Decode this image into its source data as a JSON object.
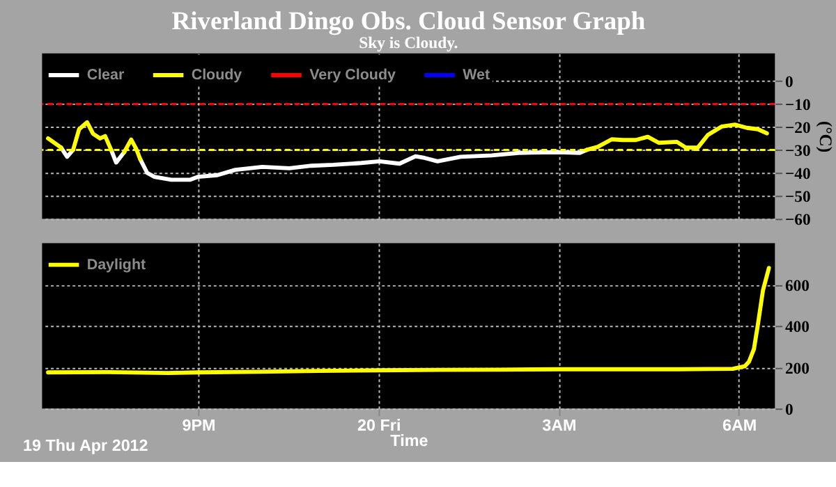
{
  "chart_data": [
    {
      "type": "line",
      "title": "Riverland Dingo Obs. Cloud Sensor Graph",
      "subtitle": "Sky is Cloudy.",
      "ylabel": "(°C)",
      "series": [
        {
          "name": "Clear",
          "color": "#ffffff",
          "x": [
            "2012-04-19T18:43",
            "2012-04-19T18:49",
            "2012-04-19T18:55",
            null,
            "2012-04-19T19:33",
            "2012-04-19T19:38",
            "2012-04-19T19:46",
            null,
            "2012-04-19T20:02",
            "2012-04-19T20:09",
            "2012-04-19T20:16",
            "2012-04-19T20:33",
            "2012-04-19T20:52",
            "2012-04-19T21:00",
            "2012-04-19T21:19",
            "2012-04-19T21:37",
            "2012-04-19T22:04",
            "2012-04-19T22:31",
            "2012-04-19T22:53",
            "2012-04-19T23:15",
            "2012-04-19T23:43",
            "2012-04-20T00:01",
            "2012-04-20T00:21",
            "2012-04-20T00:37",
            "2012-04-20T00:46",
            "2012-04-20T00:59",
            "2012-04-20T01:22",
            "2012-04-20T01:53",
            "2012-04-20T02:20",
            "2012-04-20T03:01",
            "2012-04-20T03:21",
            "2012-04-20T03:28"
          ],
          "values": [
            -29,
            -33,
            -30,
            null,
            -30,
            -35.5,
            -31,
            null,
            -34,
            -40,
            -41.7,
            -43,
            -43,
            -41.7,
            -41,
            -38.7,
            -37.4,
            -38,
            -36.9,
            -36.5,
            -35.7,
            -35,
            -36,
            -32.8,
            -33.5,
            -35,
            -33,
            -32.4,
            -31.3,
            -31,
            -31.3,
            -30
          ]
        },
        {
          "name": "Cloudy",
          "color": "#ffff00",
          "x": [
            "2012-04-19T18:30",
            "2012-04-19T18:43",
            null,
            "2012-04-19T18:55",
            "2012-04-19T19:01",
            "2012-04-19T19:09",
            "2012-04-19T19:15",
            "2012-04-19T19:22",
            "2012-04-19T19:27",
            "2012-04-19T19:33",
            null,
            "2012-04-19T19:46",
            "2012-04-19T19:53",
            "2012-04-19T19:58",
            "2012-04-19T20:02",
            null,
            "2012-04-20T03:28",
            "2012-04-20T03:39",
            "2012-04-20T03:53",
            "2012-04-20T04:04",
            "2012-04-20T04:17",
            "2012-04-20T04:29",
            "2012-04-20T04:40",
            "2012-04-20T04:58",
            "2012-04-20T05:07",
            "2012-04-20T05:19",
            "2012-04-20T05:29",
            "2012-04-20T05:43",
            "2012-04-20T05:56",
            "2012-04-20T06:08",
            "2012-04-20T06:19",
            "2012-04-20T06:28"
          ],
          "values": [
            -25,
            -29,
            null,
            -30,
            -21,
            -18,
            -23,
            -25,
            -24,
            -30,
            null,
            -31,
            -25.5,
            -29.5,
            -34,
            null,
            -30,
            -28.7,
            -25.4,
            -25.7,
            -25.7,
            -24.3,
            -26.9,
            -26.5,
            -29,
            -29,
            -23.5,
            -19.8,
            -19,
            -20.4,
            -21,
            -22.8
          ]
        },
        {
          "name": "Very Cloudy",
          "color": "#ff0000"
        },
        {
          "name": "Wet",
          "color": "#0000ff"
        }
      ],
      "xlim": [
        "2012-04-19T18:24",
        "2012-04-20T06:36"
      ],
      "xticks": [
        "2012-04-19T21:00",
        "2012-04-20T00:00",
        "2012-04-20T03:00",
        "2012-04-20T06:00"
      ],
      "ylim": [
        -60,
        12
      ],
      "yticks": [
        -60,
        -50,
        -40,
        -30,
        -20,
        -10,
        0
      ],
      "ref_lines": [
        {
          "axis": "y",
          "value": -10,
          "color": "#ff0000",
          "line_style": "dashed"
        },
        {
          "axis": "y",
          "value": -30,
          "color": "#ffff00",
          "line_style": "dashed"
        }
      ],
      "grid": true,
      "legend": "top left",
      "tick_labels": "y",
      "line_style": "solid"
    },
    {
      "type": "line",
      "xlabel": "Time",
      "annotations": [
        "19 Thu Apr 2012"
      ],
      "series": [
        {
          "name": "Daylight",
          "color": "#ffff00",
          "x": [
            "2012-04-19T18:30",
            "2012-04-19T19:30",
            "2012-04-19T20:30",
            "2012-04-19T21:00",
            "2012-04-19T22:00",
            "2012-04-19T23:00",
            "2012-04-20T00:00",
            "2012-04-20T01:00",
            "2012-04-20T02:00",
            "2012-04-20T03:00",
            "2012-04-20T04:00",
            "2012-04-20T05:00",
            "2012-04-20T05:54",
            "2012-04-20T06:06",
            "2012-04-20T06:10",
            "2012-04-20T06:15",
            "2012-04-20T06:19",
            "2012-04-20T06:24",
            "2012-04-20T06:30"
          ],
          "values": [
            175,
            176,
            172,
            175,
            178,
            182,
            185,
            187,
            188,
            190,
            190,
            190,
            192,
            205,
            226,
            287,
            406,
            570,
            680
          ]
        }
      ],
      "xlim": [
        "2012-04-19T18:24",
        "2012-04-20T06:36"
      ],
      "xticks": [
        {
          "value": "2012-04-19T21:00",
          "label": "9PM"
        },
        {
          "value": "2012-04-20T00:00",
          "label": "20 Fri"
        },
        {
          "value": "2012-04-20T03:00",
          "label": "3AM"
        },
        {
          "value": "2012-04-20T06:00",
          "label": "6AM"
        }
      ],
      "ylim": [
        0,
        800
      ],
      "yticks": [
        0,
        200,
        400,
        600
      ],
      "grid": true,
      "legend": "top left",
      "line_style": "solid"
    }
  ]
}
